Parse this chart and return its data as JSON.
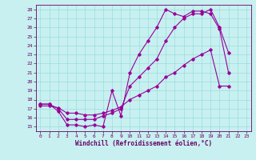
{
  "xlabel": "Windchill (Refroidissement éolien,°C)",
  "background_color": "#c8f0f0",
  "line_color": "#990099",
  "grid_color": "#99dddd",
  "xlim": [
    -0.5,
    23.5
  ],
  "ylim": [
    14.5,
    28.5
  ],
  "xticks": [
    0,
    1,
    2,
    3,
    4,
    5,
    6,
    7,
    8,
    9,
    10,
    11,
    12,
    13,
    14,
    15,
    16,
    17,
    18,
    19,
    20,
    21,
    22,
    23
  ],
  "yticks": [
    15,
    16,
    17,
    18,
    19,
    20,
    21,
    22,
    23,
    24,
    25,
    26,
    27,
    28
  ],
  "line1_y": [
    17.5,
    17.5,
    16.7,
    15.2,
    15.2,
    15.0,
    15.2,
    15.0,
    19.0,
    16.2,
    21.0,
    23.0,
    24.5,
    26.0,
    28.0,
    27.5,
    27.2,
    27.8,
    27.8,
    27.5,
    25.8,
    21.0
  ],
  "line2_y": [
    17.5,
    17.5,
    17.0,
    15.8,
    15.8,
    15.8,
    15.8,
    16.2,
    16.5,
    17.0,
    19.5,
    20.5,
    21.5,
    22.5,
    24.5,
    26.0,
    27.0,
    27.5,
    27.5,
    28.0,
    26.0,
    23.2
  ],
  "line3_y": [
    17.3,
    17.3,
    17.1,
    16.5,
    16.5,
    16.3,
    16.3,
    16.5,
    16.8,
    17.2,
    18.0,
    18.5,
    19.0,
    19.5,
    20.5,
    21.0,
    21.8,
    22.5,
    23.0,
    23.5,
    19.5,
    19.5
  ],
  "tick_fontsize": 4.5,
  "xlabel_fontsize": 5.5,
  "tick_color": "#660066",
  "xlabel_color": "#660066"
}
